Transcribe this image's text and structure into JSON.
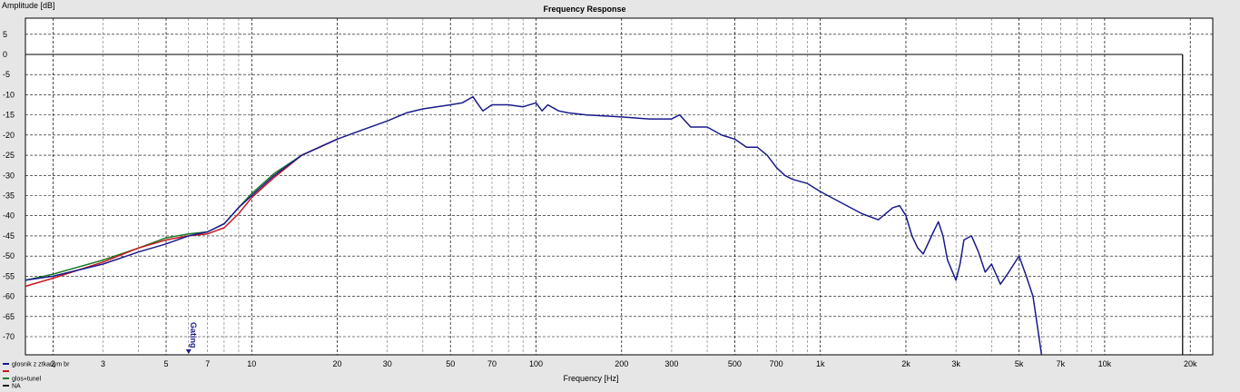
{
  "chart_data": {
    "type": "line",
    "title": "Frequency Response",
    "ylabel": "Amplitude [dB]",
    "xlabel": "Frequency [Hz]",
    "xscale": "log",
    "xlim": [
      1.6,
      24000
    ],
    "ylim": [
      -74.5,
      9
    ],
    "grid": true,
    "yticks": [
      5,
      0,
      -5,
      -10,
      -15,
      -20,
      -25,
      -30,
      -35,
      -40,
      -45,
      -50,
      -55,
      -60,
      -65,
      -70
    ],
    "xticks": [
      {
        "value": 2,
        "label": "2"
      },
      {
        "value": 3,
        "label": "3"
      },
      {
        "value": 5,
        "label": "5"
      },
      {
        "value": 7,
        "label": "7"
      },
      {
        "value": 10,
        "label": "10"
      },
      {
        "value": 20,
        "label": "20"
      },
      {
        "value": 30,
        "label": "30"
      },
      {
        "value": 50,
        "label": "50"
      },
      {
        "value": 70,
        "label": "70"
      },
      {
        "value": 100,
        "label": "100"
      },
      {
        "value": 200,
        "label": "200"
      },
      {
        "value": 300,
        "label": "300"
      },
      {
        "value": 500,
        "label": "500"
      },
      {
        "value": 700,
        "label": "700"
      },
      {
        "value": 1000,
        "label": "1k"
      },
      {
        "value": 2000,
        "label": "2k"
      },
      {
        "value": 3000,
        "label": "3k"
      },
      {
        "value": 5000,
        "label": "5k"
      },
      {
        "value": 7000,
        "label": "7k"
      },
      {
        "value": 10000,
        "label": "10k"
      },
      {
        "value": 20000,
        "label": "20k"
      }
    ],
    "marker": {
      "label": "Gating",
      "x": 6.0
    },
    "legend_position": "bottom-left",
    "series": [
      {
        "name": "glosnik z ztkanym br",
        "color": "#1a1a8c",
        "x": [
          1.6,
          2,
          3,
          4,
          5,
          6,
          7,
          8,
          9,
          10,
          12,
          15,
          20,
          25,
          30,
          35,
          40,
          50,
          55,
          60,
          62,
          65,
          70,
          80,
          90,
          100,
          105,
          110,
          120,
          130,
          150,
          200,
          250,
          300,
          320,
          350,
          400,
          450,
          500,
          550,
          600,
          650,
          700,
          750,
          800,
          900,
          1000,
          1200,
          1400,
          1600,
          1800,
          1900,
          2000,
          2100,
          2200,
          2300,
          2500,
          2600,
          2700,
          2800,
          3000,
          3100,
          3200,
          3400,
          3600,
          3800,
          4000,
          4300,
          4600,
          5000,
          5300,
          5600,
          6000
        ],
        "y": [
          -56,
          -55,
          -52,
          -49,
          -47,
          -45,
          -44,
          -42,
          -38,
          -35,
          -30,
          -25,
          -21,
          -18.5,
          -16.5,
          -14.5,
          -13.5,
          -12.5,
          -12,
          -10.5,
          -12,
          -14,
          -12.5,
          -12.5,
          -13,
          -12,
          -14,
          -12.5,
          -14,
          -14.5,
          -15,
          -15.5,
          -16,
          -16,
          -15,
          -18,
          -18,
          -20,
          -21,
          -23,
          -23,
          -25,
          -28,
          -30,
          -31,
          -32,
          -34,
          -37,
          -39.5,
          -41,
          -38,
          -37.5,
          -40,
          -45,
          -48,
          -49.5,
          -44,
          -41.5,
          -45,
          -51,
          -56,
          -52,
          -46,
          -45,
          -49,
          -54,
          -52,
          -57,
          -54,
          -50,
          -55,
          -60,
          -74.5
        ]
      },
      {
        "name": "",
        "color": "#c8181e",
        "x": [
          1.6,
          2,
          3,
          4,
          5,
          6,
          7,
          8,
          9,
          10,
          12,
          15,
          20
        ],
        "y": [
          -57.5,
          -55.5,
          -51.5,
          -48,
          -46,
          -45,
          -44.5,
          -43,
          -39.5,
          -35.5,
          -30.5,
          -25,
          -21
        ]
      },
      {
        "name": "glos+tunel",
        "color": "#1f7a2a",
        "x": [
          1.6,
          2,
          3,
          4,
          5,
          6,
          7,
          8,
          9,
          10,
          12,
          15,
          20
        ],
        "y": [
          -56,
          -54.5,
          -51,
          -48,
          -45.5,
          -44.5,
          -44,
          -42,
          -38,
          -34.5,
          -29.5,
          -25,
          -21
        ]
      },
      {
        "name": "NA",
        "color": "#222222",
        "x": [],
        "y": []
      }
    ]
  }
}
